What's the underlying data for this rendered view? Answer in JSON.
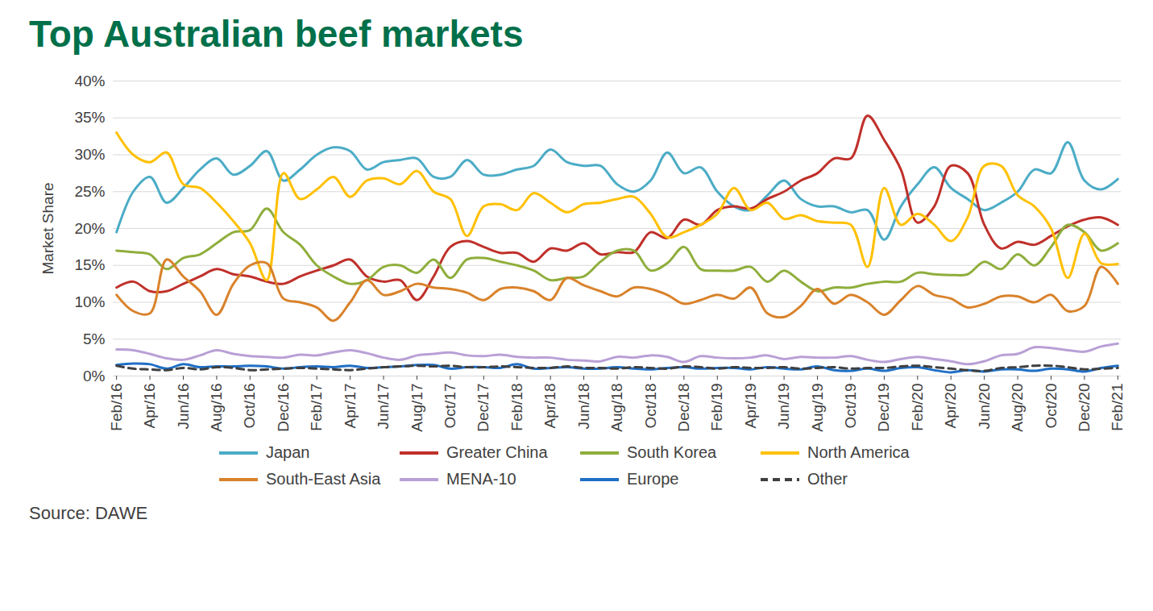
{
  "chart_data": {
    "type": "line",
    "title": "Top Australian beef markets",
    "y_label": "Market Share",
    "caption": "Source: DAWE",
    "legend": "bottom",
    "grid": true,
    "ylim": [
      0,
      40
    ],
    "yticks": [
      {
        "value": 0,
        "label": "0%"
      },
      {
        "value": 5,
        "label": "5%"
      },
      {
        "value": 10,
        "label": "10%"
      },
      {
        "value": 15,
        "label": "15%"
      },
      {
        "value": 20,
        "label": "20%"
      },
      {
        "value": 25,
        "label": "25%"
      },
      {
        "value": 30,
        "label": "30%"
      },
      {
        "value": 35,
        "label": "35%"
      },
      {
        "value": 40,
        "label": "40%"
      }
    ],
    "categories": [
      "Feb/16",
      null,
      "Apr/16",
      null,
      "Jun/16",
      null,
      "Aug/16",
      null,
      "Oct/16",
      null,
      "Dec/16",
      null,
      "Feb/17",
      null,
      "Apr/17",
      null,
      "Jun/17",
      null,
      "Aug/17",
      null,
      "Oct/17",
      null,
      "Dec/17",
      null,
      "Feb/18",
      null,
      "Apr/18",
      null,
      "Jun/18",
      null,
      "Aug/18",
      null,
      "Oct/18",
      null,
      "Dec/18",
      null,
      "Feb/19",
      null,
      "Apr/19",
      null,
      "Jun/19",
      null,
      "Aug/19",
      null,
      "Oct/19",
      null,
      "Dec/19",
      null,
      "Feb/20",
      null,
      "Apr/20",
      null,
      "Jun/20",
      null,
      "Aug/20",
      null,
      "Oct/20",
      null,
      "Dec/20",
      null,
      "Feb/21"
    ],
    "series": [
      {
        "name": "Japan",
        "color": "#4bacc6",
        "line_style": "solid",
        "values": [
          19.5,
          25,
          27,
          23.5,
          25.5,
          28,
          29.5,
          27.3,
          28.5,
          30.5,
          26.5,
          28,
          30,
          31,
          30.5,
          28,
          29,
          29.3,
          29.5,
          27,
          27,
          29.3,
          27.3,
          27.3,
          28,
          28.5,
          30.7,
          29,
          28.5,
          28.5,
          26,
          25,
          26.5,
          30.3,
          27.5,
          28.3,
          25,
          23,
          22.5,
          24.5,
          26.5,
          24,
          23,
          23,
          22.2,
          22.5,
          18.5,
          23,
          26,
          28.3,
          25.5,
          24,
          22.5,
          23.5,
          25,
          28,
          27.5,
          31.7,
          26.5,
          25.3,
          26.7
        ]
      },
      {
        "name": "Greater China",
        "color": "#c0302a",
        "line_style": "solid",
        "values": [
          12,
          12.8,
          11.5,
          11.5,
          12.5,
          13.5,
          14.5,
          13.8,
          13.5,
          12.8,
          12.5,
          13.5,
          14.3,
          15,
          15.8,
          13.5,
          12.8,
          13,
          10.3,
          13.5,
          17.5,
          18.3,
          17.5,
          16.7,
          16.7,
          15.5,
          17.3,
          17,
          18,
          16.5,
          16.8,
          16.8,
          19.5,
          18.7,
          21.2,
          20.5,
          22.5,
          23,
          22.7,
          24,
          25,
          26.5,
          27.5,
          29.5,
          29.5,
          35.3,
          32,
          28,
          20.8,
          23,
          28.5,
          27.5,
          20.5,
          17.3,
          18.2,
          17.8,
          19,
          20.3,
          21.2,
          21.5,
          20.5
        ]
      },
      {
        "name": "South Korea",
        "color": "#8fae3c",
        "line_style": "solid",
        "values": [
          17,
          16.8,
          16.5,
          14.5,
          16,
          16.5,
          18,
          19.5,
          19.8,
          22.7,
          19.5,
          17.8,
          15,
          13.5,
          12.5,
          13,
          14.8,
          15,
          14,
          15.8,
          13.3,
          15.8,
          16,
          15.5,
          15,
          14.3,
          13,
          13.3,
          13.5,
          15.5,
          17,
          17,
          14.3,
          15.3,
          17.5,
          14.5,
          14.3,
          14.3,
          14.8,
          12.8,
          14.3,
          12.8,
          11.5,
          12,
          12,
          12.5,
          12.8,
          12.8,
          14,
          13.8,
          13.7,
          13.8,
          15.5,
          14.5,
          16.5,
          15,
          17.5,
          20.5,
          19.5,
          17,
          18
        ]
      },
      {
        "name": "North America",
        "color": "#ffc000",
        "line_style": "solid",
        "values": [
          33,
          30,
          29,
          30.3,
          26,
          25.5,
          23.5,
          21,
          18,
          13,
          27.5,
          24,
          25.3,
          27,
          24.3,
          26.5,
          26.8,
          26,
          27.8,
          25,
          24,
          19,
          23,
          23.3,
          22.5,
          24.8,
          23.5,
          22.2,
          23.3,
          23.5,
          24,
          24.3,
          22,
          18.8,
          19.5,
          20.5,
          22,
          25.5,
          22.5,
          23.5,
          21.3,
          21.8,
          21,
          20.8,
          20.5,
          14.8,
          25.5,
          20.5,
          22,
          20.5,
          18.3,
          21.5,
          28.5,
          28.5,
          24.5,
          23,
          20,
          13.3,
          19.3,
          15.3,
          15.2
        ]
      },
      {
        "name": "South-East Asia",
        "color": "#d9822b",
        "line_style": "solid",
        "values": [
          11,
          8.8,
          8.5,
          15.8,
          13.5,
          11.5,
          8.3,
          12.5,
          15,
          15.3,
          10.5,
          10,
          9.3,
          7.5,
          10,
          13,
          11,
          11.5,
          12.5,
          12,
          11.8,
          11.3,
          10.3,
          11.8,
          12,
          11.5,
          10.3,
          13.3,
          12.3,
          11.5,
          10.8,
          12,
          11.8,
          11,
          9.8,
          10.3,
          11,
          10.5,
          12,
          8.5,
          8,
          9.5,
          11.8,
          9.8,
          11,
          10,
          8.3,
          10.3,
          12.2,
          11,
          10.5,
          9.3,
          9.8,
          10.8,
          10.8,
          10,
          11,
          8.8,
          9.5,
          14.8,
          12.5
        ]
      },
      {
        "name": "MENA-10",
        "color": "#b9a0d6",
        "line_style": "solid",
        "values": [
          3.6,
          3.5,
          3.0,
          2.4,
          2.2,
          2.8,
          3.5,
          3.0,
          2.7,
          2.6,
          2.5,
          2.9,
          2.8,
          3.2,
          3.5,
          3.1,
          2.5,
          2.2,
          2.8,
          3.0,
          3.2,
          2.8,
          2.7,
          2.9,
          2.6,
          2.5,
          2.5,
          2.2,
          2.1,
          2.0,
          2.6,
          2.5,
          2.8,
          2.6,
          1.9,
          2.7,
          2.5,
          2.4,
          2.5,
          2.8,
          2.3,
          2.6,
          2.5,
          2.5,
          2.7,
          2.2,
          1.9,
          2.3,
          2.6,
          2.3,
          2.0,
          1.6,
          2.0,
          2.8,
          3.0,
          3.9,
          3.8,
          3.5,
          3.3,
          4.0,
          4.4
        ]
      },
      {
        "name": "Europe",
        "color": "#1f6fc5",
        "line_style": "solid",
        "values": [
          1.5,
          1.7,
          1.6,
          1.0,
          1.6,
          1.2,
          1.3,
          1.3,
          1.4,
          1.3,
          1.0,
          1.2,
          1.3,
          1.2,
          1.4,
          1.1,
          1.2,
          1.3,
          1.5,
          1.5,
          1.0,
          1.2,
          1.2,
          1.1,
          1.6,
          1.0,
          1.1,
          1.2,
          1.0,
          1.0,
          1.2,
          1.0,
          0.9,
          1.1,
          1.2,
          1.0,
          1.1,
          1.1,
          0.9,
          1.2,
          1.0,
          0.9,
          1.3,
          0.8,
          0.7,
          1.0,
          0.7,
          1.1,
          1.2,
          0.8,
          0.5,
          0.8,
          0.6,
          0.9,
          0.9,
          0.7,
          1.0,
          0.9,
          0.6,
          1.1,
          1.4
        ]
      },
      {
        "name": "Other",
        "color": "#404040",
        "line_style": "dashed",
        "values": [
          1.4,
          1.0,
          0.9,
          0.8,
          1.1,
          0.9,
          1.2,
          1.1,
          0.8,
          0.9,
          1.0,
          1.1,
          1.0,
          0.9,
          0.8,
          1.0,
          1.2,
          1.3,
          1.4,
          1.3,
          1.4,
          1.2,
          1.2,
          1.3,
          1.2,
          1.1,
          1.1,
          1.3,
          1.1,
          1.1,
          1.0,
          1.2,
          1.1,
          1.0,
          1.3,
          1.2,
          1.0,
          1.2,
          1.1,
          1.1,
          1.2,
          1.0,
          1.1,
          1.2,
          1.0,
          1.1,
          1.1,
          1.3,
          1.4,
          1.2,
          1.0,
          0.8,
          0.7,
          1.1,
          1.2,
          1.4,
          1.4,
          1.2,
          0.9,
          1.0,
          1.1
        ]
      }
    ]
  }
}
